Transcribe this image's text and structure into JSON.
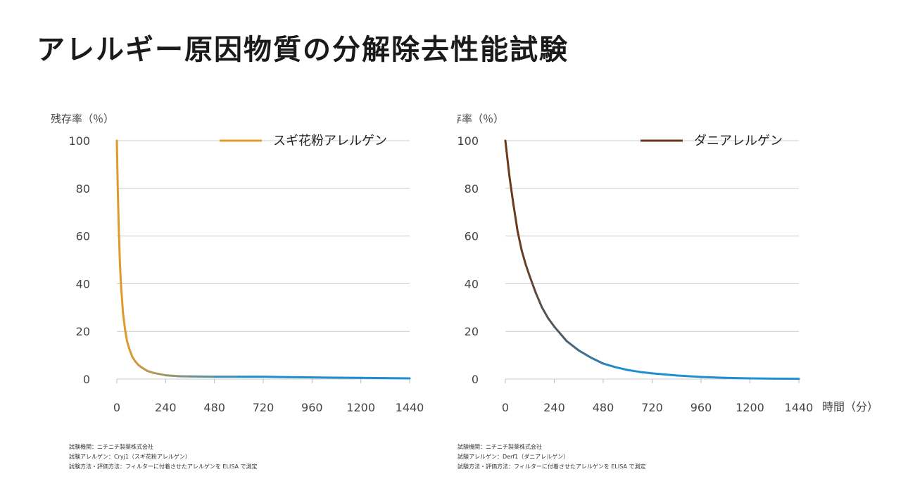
{
  "page": {
    "title": "アレルギー原因物質の分解除去性能試験"
  },
  "chart_data": [
    {
      "type": "line",
      "title": "",
      "ylabel": "残存率（％）",
      "xlabel": "",
      "xlim": [
        0,
        1440
      ],
      "ylim": [
        0,
        100
      ],
      "x_ticks": [
        "0",
        "240",
        "480",
        "720",
        "960",
        "1200",
        "1440"
      ],
      "y_ticks": [
        "0",
        "20",
        "40",
        "60",
        "80",
        "100"
      ],
      "grid": true,
      "legend": {
        "position": "top-right"
      },
      "series": [
        {
          "name": "スギ花粉アレルゲン",
          "color": "#e09a2c",
          "end_color": "#1f8fd0",
          "x": [
            0,
            5,
            10,
            15,
            20,
            30,
            40,
            50,
            60,
            75,
            90,
            105,
            120,
            150,
            180,
            240,
            300,
            360,
            480,
            600,
            720,
            840,
            960,
            1080,
            1200,
            1320,
            1440
          ],
          "y": [
            100,
            78,
            62,
            49,
            40,
            28,
            21,
            16,
            13,
            9.5,
            7.5,
            6,
            5,
            3.4,
            2.6,
            1.6,
            1.2,
            1.1,
            1.0,
            1.0,
            1.0,
            0.8,
            0.7,
            0.6,
            0.5,
            0.4,
            0.3
          ]
        }
      ],
      "notes": [
        "試験機関：ニチニチ製薬株式会社",
        "試験アレルゲン：Cryj1（スギ花粉アレルゲン）",
        "試験方法・評価方法：フィルターに付着させたアレルゲンを ELISA で測定"
      ]
    },
    {
      "type": "line",
      "title": "",
      "ylabel": "残存率（％）",
      "xlabel": "時間（分）",
      "xlim": [
        0,
        1440
      ],
      "ylim": [
        0,
        100
      ],
      "x_ticks": [
        "0",
        "240",
        "480",
        "720",
        "960",
        "1200",
        "1440"
      ],
      "y_ticks": [
        "0",
        "20",
        "40",
        "60",
        "80",
        "100"
      ],
      "grid": true,
      "legend": {
        "position": "top-right"
      },
      "series": [
        {
          "name": "ダニアレルゲン",
          "color": "#6b3a1c",
          "end_color": "#1f8fd0",
          "x": [
            0,
            20,
            40,
            60,
            80,
            100,
            120,
            150,
            180,
            210,
            240,
            300,
            360,
            420,
            480,
            540,
            600,
            660,
            720,
            840,
            960,
            1080,
            1200,
            1320,
            1440
          ],
          "y": [
            100,
            85,
            73,
            62,
            54,
            48,
            43,
            36,
            30,
            25.5,
            22,
            16,
            12,
            9,
            6.5,
            5,
            3.8,
            3,
            2.4,
            1.5,
            0.9,
            0.5,
            0.3,
            0.2,
            0.1
          ]
        }
      ],
      "notes": [
        "試験機関：ニチニチ製薬株式会社",
        "試験アレルゲン：Derf1（ダニアレルゲン）",
        "試験方法・評価方法：フィルターに付着させたアレルゲンを ELISA で測定"
      ]
    }
  ]
}
